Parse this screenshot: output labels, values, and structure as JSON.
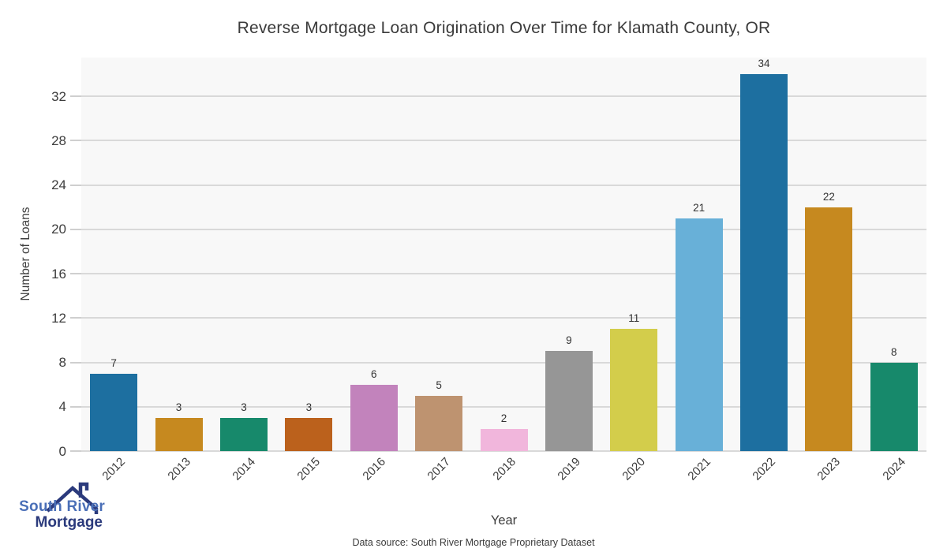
{
  "chart_data": {
    "type": "bar",
    "title": "Reverse Mortgage Loan Origination Over Time for Klamath County, OR",
    "categories": [
      "2012",
      "2013",
      "2014",
      "2015",
      "2016",
      "2017",
      "2018",
      "2019",
      "2020",
      "2021",
      "2022",
      "2023",
      "2024"
    ],
    "values": [
      7,
      3,
      3,
      3,
      6,
      5,
      2,
      9,
      11,
      21,
      34,
      22,
      8
    ],
    "bar_colors": [
      "#1d6fa0",
      "#c6891f",
      "#17896b",
      "#bb611c",
      "#c283bc",
      "#be9370",
      "#f1b6dc",
      "#969696",
      "#d3cd4b",
      "#68b0d8",
      "#1d6fa0",
      "#c6891f",
      "#17896b"
    ],
    "xlabel": "Year",
    "ylabel": "Number of Loans",
    "ylim": [
      0,
      35.5
    ],
    "yticks": [
      0,
      4,
      8,
      12,
      16,
      20,
      24,
      28,
      32
    ],
    "grid": "horizontal-on",
    "legend": "none",
    "value_labels_shown": true,
    "plot_bg_color": "#f8f8f8",
    "gridline_color": "#d9d9d9",
    "title_color": "#3b3b3b",
    "tick_label_color": "#3d3d3d"
  },
  "branding": {
    "logo_line1": "South River",
    "logo_line2": "Mortgage",
    "logo_line1_color": "#4a6fb7",
    "logo_line2_color": "#2b3a7c",
    "logo_icon": "house-roof-icon",
    "logo_icon_color": "#2b3a7c"
  },
  "footer": {
    "source_text": "Data source: South River Mortgage Proprietary Dataset"
  }
}
